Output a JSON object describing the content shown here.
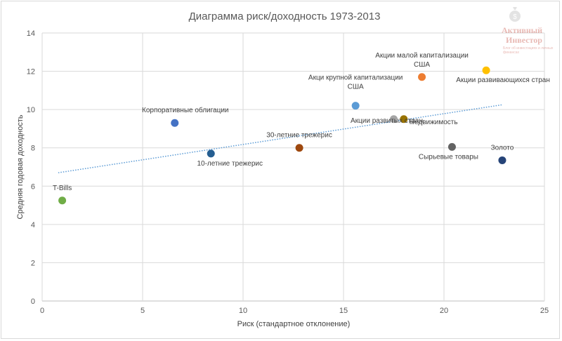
{
  "watermark": {
    "line1": "Активный",
    "line2": "Инвестор",
    "tagline": "Блог об инвестициях и личных финансах",
    "icon": "money-bag-icon"
  },
  "chart_data": {
    "type": "scatter",
    "title": "Диаграмма риск/доходность 1973-2013",
    "xlabel": "Риск (стандартное отклонение)",
    "ylabel": "Средняя годовая доходность",
    "xlim": [
      0,
      25
    ],
    "ylim": [
      0,
      14
    ],
    "xticks": [
      0,
      5,
      10,
      15,
      20,
      25
    ],
    "yticks": [
      0,
      2,
      4,
      6,
      8,
      10,
      12,
      14
    ],
    "grid": "vertical major gridlines, horizontal major gridlines",
    "trendline": {
      "style": "dotted",
      "color": "#5b9bd5",
      "x": [
        0.8,
        22.9
      ],
      "y": [
        6.7,
        10.25
      ]
    },
    "points": [
      {
        "label": "T-Bills",
        "x": 1.0,
        "y": 5.25,
        "color": "#70ad47"
      },
      {
        "label": "Корпоративные облигации",
        "x": 6.6,
        "y": 9.3,
        "color": "#4472c4"
      },
      {
        "label": "10-летние трежерис",
        "x": 8.4,
        "y": 7.7,
        "color": "#255e91"
      },
      {
        "label": "30-летние трежерис",
        "x": 12.8,
        "y": 8.0,
        "color": "#9e480e"
      },
      {
        "label": "Акци крупной капитализации США",
        "x": 15.6,
        "y": 10.2,
        "color": "#5b9bd5"
      },
      {
        "label": "Акции развитых стран",
        "x": 17.5,
        "y": 9.5,
        "color": "#a5a5a5"
      },
      {
        "label": "Недвижимость",
        "x": 18.0,
        "y": 9.5,
        "color": "#997300"
      },
      {
        "label": "Акции малой капитализации США",
        "x": 18.9,
        "y": 11.7,
        "color": "#ed7d31"
      },
      {
        "label": "Сырьевые товары",
        "x": 20.4,
        "y": 8.05,
        "color": "#636363"
      },
      {
        "label": "Акции развивающихся стран",
        "x": 22.1,
        "y": 12.05,
        "color": "#ffc000"
      },
      {
        "label": "Золото",
        "x": 22.9,
        "y": 7.35,
        "color": "#264478"
      }
    ]
  }
}
